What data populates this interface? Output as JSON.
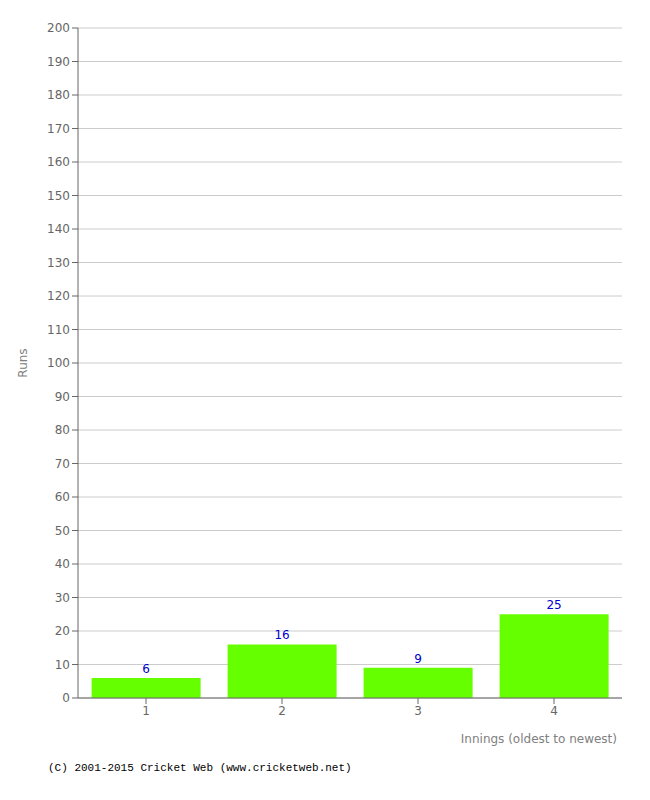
{
  "chart_data": {
    "type": "bar",
    "categories": [
      "1",
      "2",
      "3",
      "4"
    ],
    "values": [
      6,
      16,
      9,
      25
    ],
    "color": "#66ff00",
    "xlabel": "Innings (oldest to newest)",
    "ylabel": "Runs",
    "ylim": [
      0,
      200
    ],
    "yticks": [
      0,
      10,
      20,
      30,
      40,
      50,
      60,
      70,
      80,
      90,
      100,
      110,
      120,
      130,
      140,
      150,
      160,
      170,
      180,
      190,
      200
    ],
    "grid": true,
    "data_labels": true,
    "annotations": [
      "(C) 2001-2015 Cricket Web (www.cricketweb.net)"
    ]
  }
}
